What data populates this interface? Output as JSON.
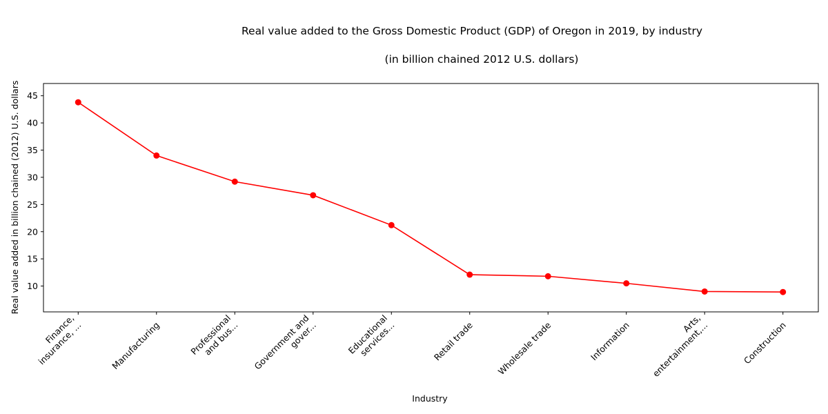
{
  "chart_data": {
    "type": "line",
    "title": "Real value added to the Gross Domestic Product (GDP) of Oregon in 2019, by industry",
    "subtitle": "(in billion chained 2012 U.S. dollars)",
    "xlabel": "Industry",
    "ylabel": "Real value added in billion chained (2012) U.S. dollars",
    "categories": [
      [
        "Finance,",
        "insurance, ..."
      ],
      [
        "Manufacturing"
      ],
      [
        "Professional",
        "and bus..."
      ],
      [
        "Government and",
        "gover..."
      ],
      [
        "Educational",
        "services..."
      ],
      [
        "Retail trade"
      ],
      [
        "Wholesale trade"
      ],
      [
        "Information"
      ],
      [
        "Arts,",
        "entertainment,..."
      ],
      [
        "Construction"
      ]
    ],
    "series": [
      {
        "values": [
          43.8,
          34.0,
          29.2,
          26.7,
          21.2,
          12.1,
          11.8,
          10.5,
          9.0,
          8.9
        ],
        "color": "#ff0000",
        "marker": "circle"
      }
    ],
    "yticks": [
      10,
      15,
      20,
      25,
      30,
      35,
      40,
      45
    ],
    "ylim": [
      5.25,
      47.25
    ],
    "grid": false,
    "legend": "none"
  }
}
